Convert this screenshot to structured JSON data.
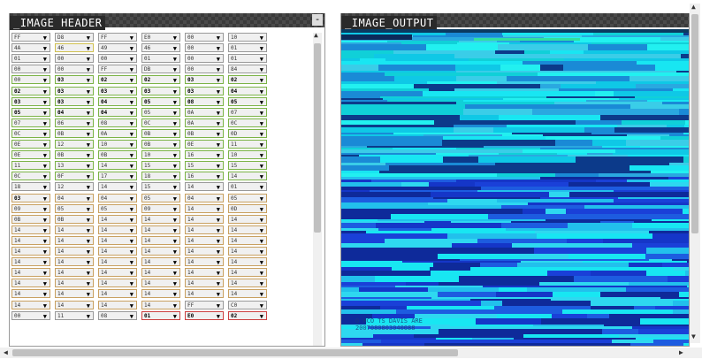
{
  "header_panel": {
    "title": "_IMAGE HEADER",
    "minimize_label": "-"
  },
  "output_panel": {
    "title": "_IMAGE_OUTPUT",
    "overlay_line1": "Q HCO TS DAVIS  ARE",
    "overlay_line2": "2007080803040088"
  },
  "grid": {
    "columns": 6,
    "rows": [
      [
        {
          "v": "FF",
          "b": ""
        },
        {
          "v": "D8",
          "b": ""
        },
        {
          "v": "FF",
          "b": ""
        },
        {
          "v": "E0",
          "b": ""
        },
        {
          "v": "00",
          "b": ""
        },
        {
          "v": "10",
          "b": ""
        }
      ],
      [
        {
          "v": "4A",
          "b": ""
        },
        {
          "v": "46",
          "b": "yellow"
        },
        {
          "v": "49",
          "b": ""
        },
        {
          "v": "46",
          "b": ""
        },
        {
          "v": "00",
          "b": ""
        },
        {
          "v": "01",
          "b": ""
        }
      ],
      [
        {
          "v": "01",
          "b": ""
        },
        {
          "v": "00",
          "b": ""
        },
        {
          "v": "00",
          "b": ""
        },
        {
          "v": "01",
          "b": ""
        },
        {
          "v": "00",
          "b": ""
        },
        {
          "v": "01",
          "b": ""
        }
      ],
      [
        {
          "v": "00",
          "b": ""
        },
        {
          "v": "00",
          "b": ""
        },
        {
          "v": "FF",
          "b": ""
        },
        {
          "v": "DB",
          "b": ""
        },
        {
          "v": "00",
          "b": ""
        },
        {
          "v": "84",
          "b": ""
        }
      ],
      [
        {
          "v": "00",
          "b": "green"
        },
        {
          "v": "03",
          "b": "green",
          "bold": 1
        },
        {
          "v": "02",
          "b": "green",
          "bold": 1
        },
        {
          "v": "02",
          "b": "green",
          "bold": 1
        },
        {
          "v": "03",
          "b": "green",
          "bold": 1
        },
        {
          "v": "02",
          "b": "green",
          "bold": 1
        }
      ],
      [
        {
          "v": "02",
          "b": "green",
          "bold": 1
        },
        {
          "v": "03",
          "b": "green",
          "bold": 1
        },
        {
          "v": "03",
          "b": "green",
          "bold": 1
        },
        {
          "v": "03",
          "b": "green",
          "bold": 1
        },
        {
          "v": "03",
          "b": "green",
          "bold": 1
        },
        {
          "v": "04",
          "b": "green",
          "bold": 1
        }
      ],
      [
        {
          "v": "03",
          "b": "green",
          "bold": 1
        },
        {
          "v": "03",
          "b": "green",
          "bold": 1
        },
        {
          "v": "04",
          "b": "green",
          "bold": 1
        },
        {
          "v": "05",
          "b": "green",
          "bold": 1
        },
        {
          "v": "08",
          "b": "green",
          "bold": 1
        },
        {
          "v": "05",
          "b": "green",
          "bold": 1
        }
      ],
      [
        {
          "v": "05",
          "b": "green",
          "bold": 1
        },
        {
          "v": "04",
          "b": "green",
          "bold": 1
        },
        {
          "v": "04",
          "b": "green",
          "bold": 1
        },
        {
          "v": "05",
          "b": "green"
        },
        {
          "v": "0A",
          "b": "green"
        },
        {
          "v": "07",
          "b": "green"
        }
      ],
      [
        {
          "v": "07",
          "b": "green"
        },
        {
          "v": "06",
          "b": "green"
        },
        {
          "v": "08",
          "b": "green"
        },
        {
          "v": "0C",
          "b": "green"
        },
        {
          "v": "0A",
          "b": "green"
        },
        {
          "v": "0C",
          "b": "green"
        }
      ],
      [
        {
          "v": "0C",
          "b": "green"
        },
        {
          "v": "0B",
          "b": "green"
        },
        {
          "v": "0A",
          "b": "green"
        },
        {
          "v": "0B",
          "b": "green"
        },
        {
          "v": "0B",
          "b": "green"
        },
        {
          "v": "0D",
          "b": "green"
        }
      ],
      [
        {
          "v": "0E",
          "b": "green"
        },
        {
          "v": "12",
          "b": "green"
        },
        {
          "v": "10",
          "b": "green"
        },
        {
          "v": "0B",
          "b": "green"
        },
        {
          "v": "0E",
          "b": "green"
        },
        {
          "v": "11",
          "b": "green"
        }
      ],
      [
        {
          "v": "0E",
          "b": "green"
        },
        {
          "v": "0B",
          "b": "green"
        },
        {
          "v": "0B",
          "b": "green"
        },
        {
          "v": "10",
          "b": "green"
        },
        {
          "v": "16",
          "b": "green"
        },
        {
          "v": "10",
          "b": "green"
        }
      ],
      [
        {
          "v": "11",
          "b": "green"
        },
        {
          "v": "13",
          "b": "green"
        },
        {
          "v": "14",
          "b": "green"
        },
        {
          "v": "15",
          "b": "green"
        },
        {
          "v": "15",
          "b": "green"
        },
        {
          "v": "15",
          "b": "green"
        }
      ],
      [
        {
          "v": "0C",
          "b": "green"
        },
        {
          "v": "0F",
          "b": "green"
        },
        {
          "v": "17",
          "b": "green"
        },
        {
          "v": "18",
          "b": "green"
        },
        {
          "v": "16",
          "b": "green"
        },
        {
          "v": "14",
          "b": "green"
        }
      ],
      [
        {
          "v": "18",
          "b": ""
        },
        {
          "v": "12",
          "b": ""
        },
        {
          "v": "14",
          "b": ""
        },
        {
          "v": "15",
          "b": ""
        },
        {
          "v": "14",
          "b": ""
        },
        {
          "v": "01",
          "b": ""
        }
      ],
      [
        {
          "v": "03",
          "b": "orange",
          "bold": 1
        },
        {
          "v": "04",
          "b": "orange"
        },
        {
          "v": "04",
          "b": "orange"
        },
        {
          "v": "05",
          "b": "orange"
        },
        {
          "v": "04",
          "b": "orange"
        },
        {
          "v": "05",
          "b": "orange"
        }
      ],
      [
        {
          "v": "09",
          "b": "orange"
        },
        {
          "v": "05",
          "b": "orange"
        },
        {
          "v": "05",
          "b": "orange"
        },
        {
          "v": "09",
          "b": "orange"
        },
        {
          "v": "14",
          "b": "orange"
        },
        {
          "v": "0D",
          "b": "orange"
        }
      ],
      [
        {
          "v": "0B",
          "b": "orange"
        },
        {
          "v": "0B",
          "b": "orange"
        },
        {
          "v": "14",
          "b": "orange"
        },
        {
          "v": "14",
          "b": "orange"
        },
        {
          "v": "14",
          "b": "orange"
        },
        {
          "v": "14",
          "b": "orange"
        }
      ],
      [
        {
          "v": "14",
          "b": "orange"
        },
        {
          "v": "14",
          "b": "orange"
        },
        {
          "v": "14",
          "b": "orange"
        },
        {
          "v": "14",
          "b": "orange"
        },
        {
          "v": "14",
          "b": "orange"
        },
        {
          "v": "14",
          "b": "orange"
        }
      ],
      [
        {
          "v": "14",
          "b": "orange"
        },
        {
          "v": "14",
          "b": "orange"
        },
        {
          "v": "14",
          "b": "orange"
        },
        {
          "v": "14",
          "b": "orange"
        },
        {
          "v": "14",
          "b": "orange"
        },
        {
          "v": "14",
          "b": "orange"
        }
      ],
      [
        {
          "v": "14",
          "b": "orange"
        },
        {
          "v": "14",
          "b": "orange"
        },
        {
          "v": "14",
          "b": "orange"
        },
        {
          "v": "14",
          "b": "orange"
        },
        {
          "v": "14",
          "b": "orange"
        },
        {
          "v": "14",
          "b": "orange"
        }
      ],
      [
        {
          "v": "14",
          "b": "orange"
        },
        {
          "v": "14",
          "b": "orange"
        },
        {
          "v": "14",
          "b": "orange"
        },
        {
          "v": "14",
          "b": "orange"
        },
        {
          "v": "14",
          "b": "orange"
        },
        {
          "v": "14",
          "b": "orange"
        }
      ],
      [
        {
          "v": "14",
          "b": "orange"
        },
        {
          "v": "14",
          "b": "orange"
        },
        {
          "v": "14",
          "b": "orange"
        },
        {
          "v": "14",
          "b": "orange"
        },
        {
          "v": "14",
          "b": "orange"
        },
        {
          "v": "14",
          "b": "orange"
        }
      ],
      [
        {
          "v": "14",
          "b": "orange"
        },
        {
          "v": "14",
          "b": "orange"
        },
        {
          "v": "14",
          "b": "orange"
        },
        {
          "v": "14",
          "b": "orange"
        },
        {
          "v": "14",
          "b": "orange"
        },
        {
          "v": "14",
          "b": "orange"
        }
      ],
      [
        {
          "v": "14",
          "b": "orange"
        },
        {
          "v": "14",
          "b": "orange"
        },
        {
          "v": "14",
          "b": "orange"
        },
        {
          "v": "14",
          "b": "orange"
        },
        {
          "v": "14",
          "b": "orange"
        },
        {
          "v": "14",
          "b": "orange"
        }
      ],
      [
        {
          "v": "14",
          "b": "orange"
        },
        {
          "v": "14",
          "b": "orange"
        },
        {
          "v": "14",
          "b": "orange"
        },
        {
          "v": "14",
          "b": "orange"
        },
        {
          "v": "FF",
          "b": ""
        },
        {
          "v": "C0",
          "b": ""
        }
      ],
      [
        {
          "v": "00",
          "b": ""
        },
        {
          "v": "11",
          "b": ""
        },
        {
          "v": "08",
          "b": ""
        },
        {
          "v": "01",
          "b": "red",
          "bold": 1
        },
        {
          "v": "E0",
          "b": "red",
          "bold": 1
        },
        {
          "v": "02",
          "b": "red",
          "bold": 1
        }
      ]
    ]
  },
  "colors": {
    "border_green": "#7bb346",
    "border_yellow": "#d0c050",
    "border_orange": "#c8a060",
    "border_red": "#cc4040",
    "glitch_cyan": "#00e5f0",
    "glitch_blue": "#1a40d8"
  },
  "icons": {
    "dropdown": "down-triangle",
    "scroll_up": "up-arrow",
    "scroll_down": "down-arrow",
    "scroll_left": "left-arrow",
    "scroll_right": "right-arrow"
  }
}
